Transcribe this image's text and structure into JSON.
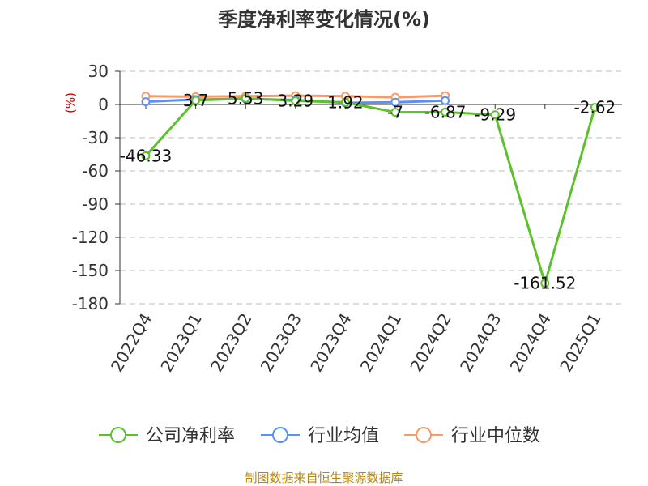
{
  "chart_data": {
    "type": "line",
    "title": "季度净利率变化情况(%)",
    "ylabel": "(%)",
    "categories": [
      "2022Q4",
      "2023Q1",
      "2023Q2",
      "2023Q3",
      "2023Q4",
      "2024Q1",
      "2024Q2",
      "2024Q3",
      "2024Q4",
      "2025Q1"
    ],
    "ylim": [
      -180,
      30
    ],
    "yticks": [
      30,
      0,
      -30,
      -60,
      -90,
      -120,
      -150,
      -180
    ],
    "grid": true,
    "legend_position": "bottom",
    "series": [
      {
        "name": "公司净利率",
        "color": "#5cc12d",
        "values": [
          -46.33,
          3.7,
          5.53,
          3.29,
          1.92,
          -7,
          -6.87,
          -9.29,
          -161.52,
          -2.62
        ],
        "labels": [
          "-46.33",
          "3.7",
          "5.53",
          "3.29",
          "1.92",
          "-7",
          "-6.87",
          "-9.29",
          "-161.52",
          "-2.62"
        ]
      },
      {
        "name": "行业均值",
        "color": "#5b8ff9",
        "values": [
          2.5,
          4.5,
          5,
          4,
          1.5,
          2,
          3.5,
          null,
          null,
          null
        ]
      },
      {
        "name": "行业中位数",
        "color": "#f59a6b",
        "values": [
          7.5,
          7,
          7.5,
          8,
          7.5,
          6.5,
          8,
          null,
          null,
          null
        ]
      }
    ]
  },
  "footer": {
    "source": "制图数据来自恒生聚源数据库"
  }
}
